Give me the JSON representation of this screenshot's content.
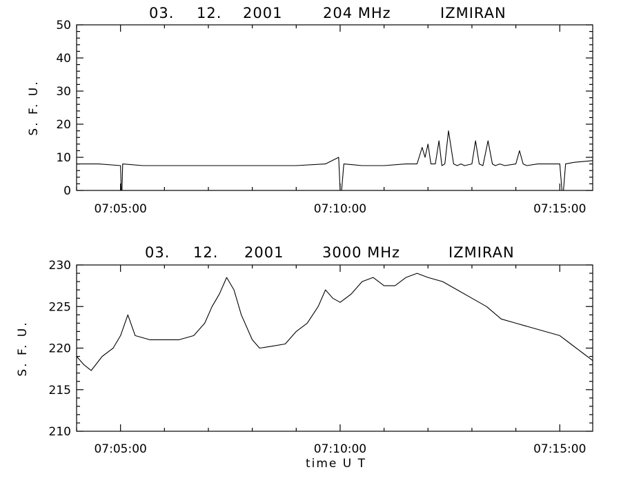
{
  "chart_data": [
    {
      "type": "line",
      "title_parts": [
        "03.",
        "12.",
        "2001",
        "204 MHz",
        "IZMIRAN"
      ],
      "ylabel": "S. F. U.",
      "xlabel": "",
      "xlim": [
        "07:04:00",
        "07:15:45"
      ],
      "ylim": [
        0,
        50
      ],
      "yticks": [
        0,
        10,
        20,
        30,
        40,
        50
      ],
      "ytick_labels": [
        "0",
        "10",
        "20",
        "30",
        "40",
        "50"
      ],
      "xtick_labels": [
        "07:05:00",
        "07:10:00",
        "07:15:00"
      ],
      "xticks": [
        "07:05:00",
        "07:10:00",
        "07:15:00"
      ],
      "series": [
        {
          "x": [
            "07:04:00",
            "07:04:30",
            "07:05:00",
            "07:05:01",
            "07:05:02",
            "07:05:03",
            "07:05:30",
            "07:06:00",
            "07:07:00",
            "07:08:00",
            "07:09:00",
            "07:09:40",
            "07:09:58",
            "07:10:00",
            "07:10:02",
            "07:10:05",
            "07:10:30",
            "07:11:00",
            "07:11:30",
            "07:11:45",
            "07:11:52",
            "07:11:56",
            "07:12:00",
            "07:12:04",
            "07:12:10",
            "07:12:15",
            "07:12:19",
            "07:12:23",
            "07:12:28",
            "07:12:35",
            "07:12:40",
            "07:12:45",
            "07:12:50",
            "07:13:00",
            "07:13:05",
            "07:13:10",
            "07:13:15",
            "07:13:22",
            "07:13:28",
            "07:13:32",
            "07:13:38",
            "07:13:45",
            "07:14:00",
            "07:14:05",
            "07:14:10",
            "07:14:15",
            "07:14:30",
            "07:15:00",
            "07:15:03",
            "07:15:05",
            "07:15:08",
            "07:15:20",
            "07:15:45"
          ],
          "y": [
            8,
            8,
            7.5,
            0,
            0,
            8,
            7.5,
            7.5,
            7.5,
            7.5,
            7.5,
            8,
            10,
            0,
            0,
            8,
            7.5,
            7.5,
            8,
            8,
            13,
            10,
            14,
            8,
            8,
            15,
            7.5,
            8,
            18,
            8,
            7.5,
            8,
            7.5,
            8,
            15,
            8,
            7.5,
            15,
            8,
            7.5,
            8,
            7.5,
            8,
            12,
            8,
            7.5,
            8,
            8,
            0,
            0,
            8,
            8.5,
            9
          ]
        }
      ]
    },
    {
      "type": "line",
      "title_parts": [
        "03.",
        "12.",
        "2001",
        "3000 MHz",
        "IZMIRAN"
      ],
      "ylabel": "S. F. U.",
      "xlabel": "time  U T",
      "xlim": [
        "07:04:00",
        "07:15:45"
      ],
      "ylim": [
        210,
        230
      ],
      "yticks": [
        210,
        215,
        220,
        225,
        230
      ],
      "ytick_labels": [
        "210",
        "215",
        "220",
        "225",
        "230"
      ],
      "xtick_labels": [
        "07:05:00",
        "07:10:00",
        "07:15:00"
      ],
      "xticks": [
        "07:05:00",
        "07:10:00",
        "07:15:00"
      ],
      "series": [
        {
          "x": [
            "07:04:00",
            "07:04:10",
            "07:04:20",
            "07:04:35",
            "07:04:50",
            "07:05:00",
            "07:05:10",
            "07:05:20",
            "07:05:40",
            "07:06:00",
            "07:06:20",
            "07:06:40",
            "07:06:55",
            "07:07:05",
            "07:07:15",
            "07:07:25",
            "07:07:35",
            "07:07:45",
            "07:08:00",
            "07:08:10",
            "07:08:25",
            "07:08:45",
            "07:09:00",
            "07:09:15",
            "07:09:30",
            "07:09:40",
            "07:09:50",
            "07:10:00",
            "07:10:15",
            "07:10:30",
            "07:10:45",
            "07:11:00",
            "07:11:15",
            "07:11:30",
            "07:11:45",
            "07:12:00",
            "07:12:20",
            "07:12:40",
            "07:13:00",
            "07:13:20",
            "07:13:40",
            "07:14:00",
            "07:14:20",
            "07:14:40",
            "07:15:00",
            "07:15:15",
            "07:15:30",
            "07:15:45"
          ],
          "y": [
            219,
            218,
            217.3,
            219,
            220,
            221.5,
            224,
            221.5,
            221,
            221,
            221,
            221.5,
            223,
            225,
            226.5,
            228.5,
            227,
            224,
            221,
            220,
            220.2,
            220.5,
            222,
            223,
            225,
            227,
            226,
            225.5,
            226.5,
            228,
            228.5,
            227.5,
            227.5,
            228.5,
            229,
            228.5,
            228,
            227,
            226,
            225,
            223.5,
            223,
            222.5,
            222,
            221.5,
            220.5,
            219.5,
            218.5
          ]
        }
      ]
    }
  ]
}
